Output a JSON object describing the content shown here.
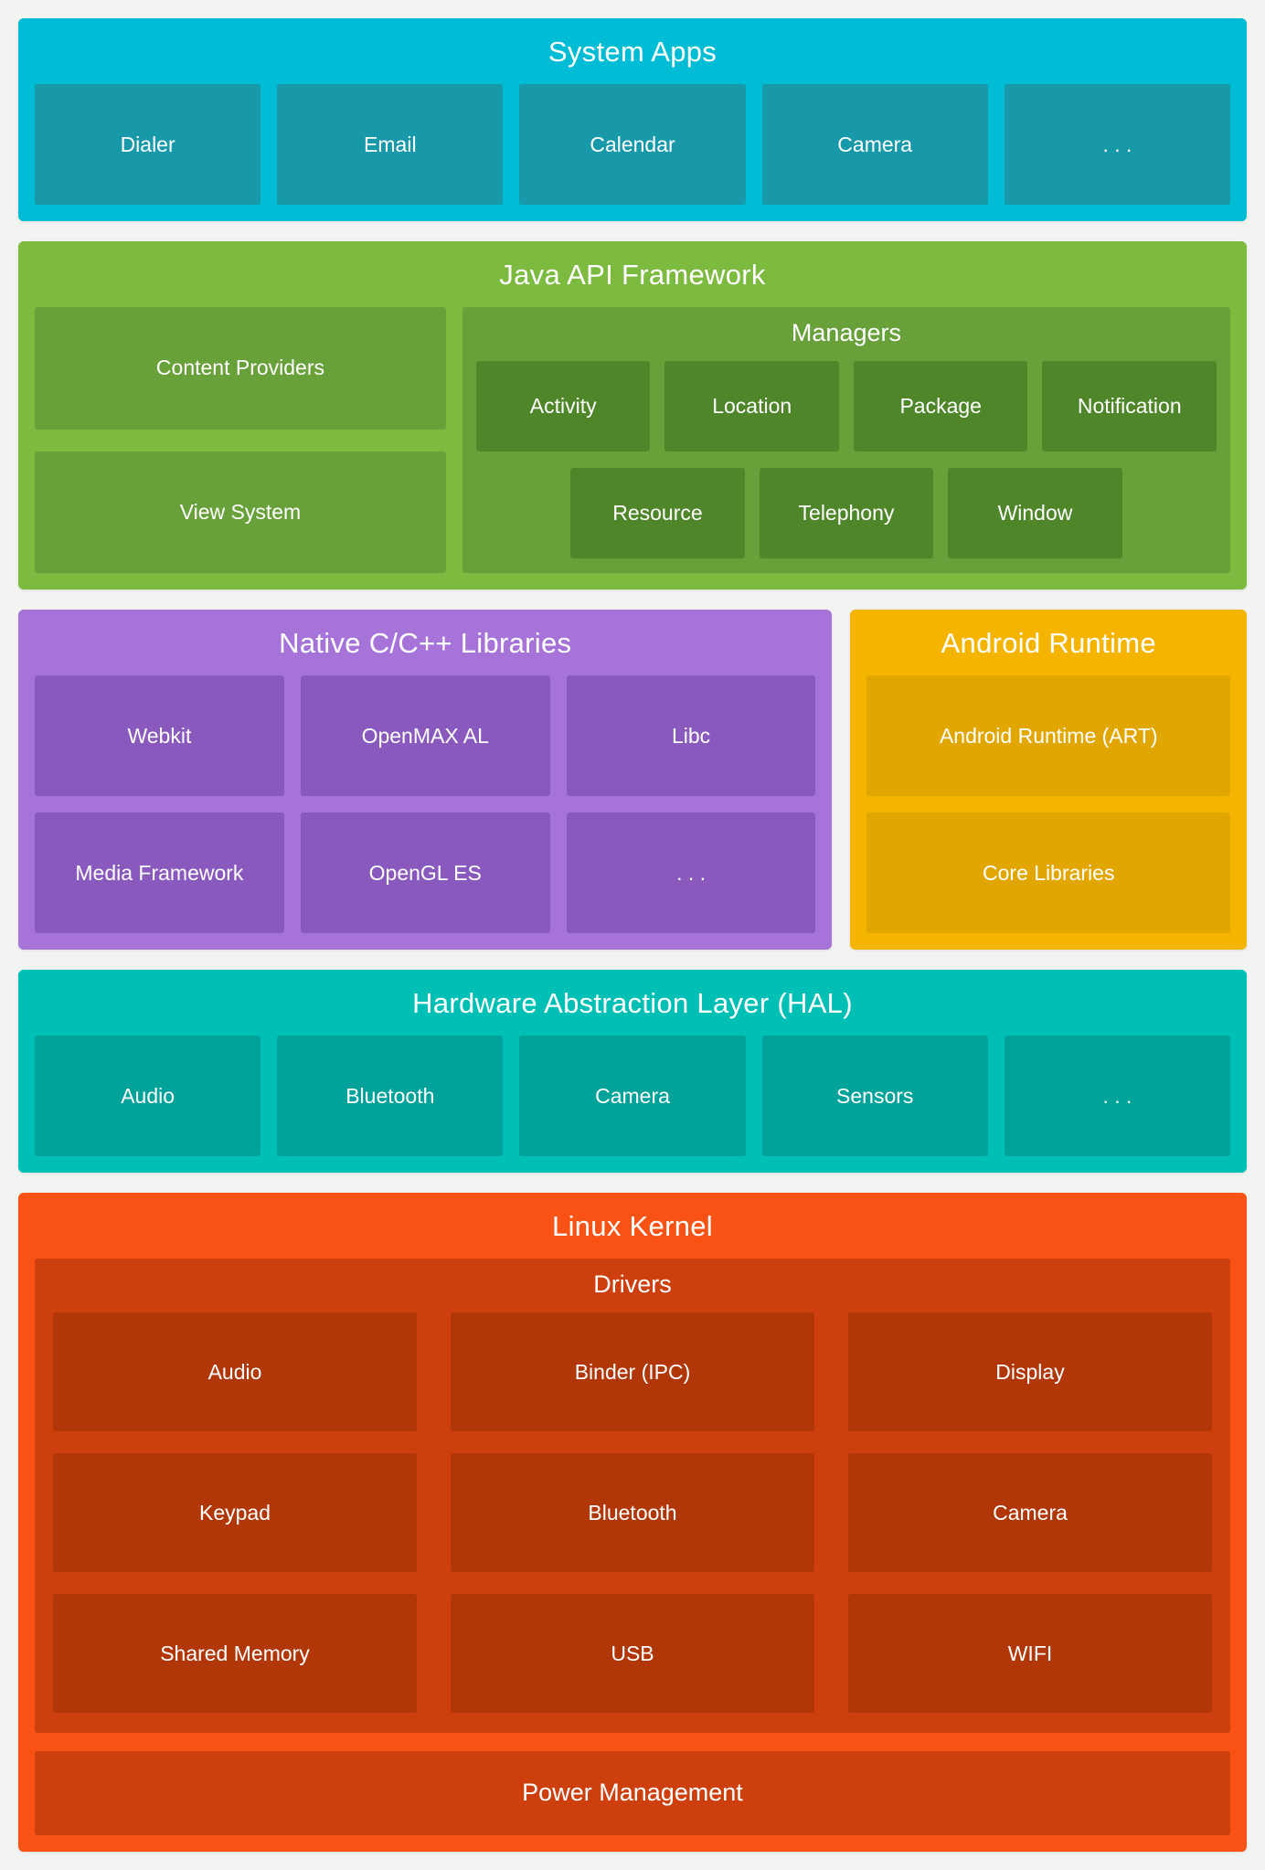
{
  "system_apps": {
    "title": "System Apps",
    "items": [
      "Dialer",
      "Email",
      "Calendar",
      "Camera",
      ". . ."
    ]
  },
  "java_api": {
    "title": "Java API Framework",
    "left_items": [
      "Content Providers",
      "View System"
    ],
    "managers": {
      "title": "Managers",
      "row1": [
        "Activity",
        "Location",
        "Package",
        "Notification"
      ],
      "row2": [
        "Resource",
        "Telephony",
        "Window"
      ]
    }
  },
  "native_libs": {
    "title": "Native C/C++ Libraries",
    "row1": [
      "Webkit",
      "OpenMAX AL",
      "Libc"
    ],
    "row2": [
      "Media Framework",
      "OpenGL ES",
      ". . ."
    ]
  },
  "android_runtime": {
    "title": "Android Runtime",
    "items": [
      "Android Runtime (ART)",
      "Core Libraries"
    ]
  },
  "hal": {
    "title": "Hardware Abstraction Layer (HAL)",
    "items": [
      "Audio",
      "Bluetooth",
      "Camera",
      "Sensors",
      ". . ."
    ]
  },
  "linux_kernel": {
    "title": "Linux Kernel",
    "drivers": {
      "title": "Drivers",
      "rows": [
        [
          "Audio",
          "Binder (IPC)",
          "Display"
        ],
        [
          "Keypad",
          "Bluetooth",
          "Camera"
        ],
        [
          "Shared Memory",
          "USB",
          "WIFI"
        ]
      ]
    },
    "power": "Power Management"
  },
  "colors": {
    "page_bg": "#f3f4f2",
    "text": "#ffffff",
    "sysapps_band": "#00bcd4",
    "sysapps_box": "#1799a9",
    "java_band": "#7dba40",
    "java_box": "#68a03a",
    "java_small_box": "#4e8629",
    "native_band": "#a674d9",
    "native_box": "#8959bd",
    "runtime_band": "#f4b400",
    "runtime_box": "#e2a600",
    "hal_band": "#00c0b5",
    "hal_box": "#00a29a",
    "kernel_band": "#f85315",
    "kernel_container": "#cd400e",
    "kernel_box": "#b13708"
  }
}
